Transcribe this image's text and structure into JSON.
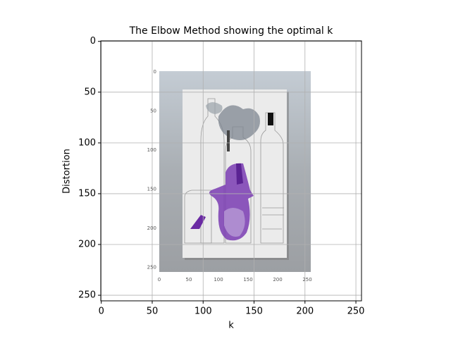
{
  "chart_data": {
    "type": "image",
    "title": "The Elbow Method showing the optimal k",
    "x_label": "k",
    "y_label": "Distortion",
    "xlim": [
      -0.5,
      255.5
    ],
    "ylim": [
      255.5,
      -0.5
    ],
    "xticks": [
      0,
      50,
      100,
      150,
      200,
      250
    ],
    "yticks": [
      0,
      50,
      100,
      150,
      200,
      250
    ],
    "grid": true,
    "image_xticks": [
      0,
      50,
      100,
      150,
      200,
      250
    ],
    "image_yticks": [
      0,
      50,
      100,
      150,
      200,
      250
    ]
  }
}
